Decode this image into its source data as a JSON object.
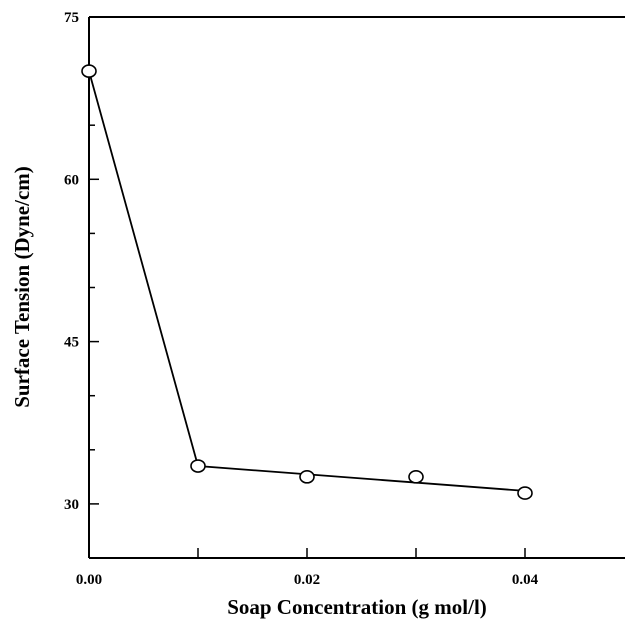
{
  "chart_data": {
    "type": "line",
    "xlabel": "Soap Concentration (g mol/l)",
    "ylabel": "Surface Tension (Dyne/cm)",
    "xlim": [
      0,
      0.05
    ],
    "ylim": [
      25,
      75
    ],
    "xticks": [
      0.0,
      0.01,
      0.02,
      0.03,
      0.04,
      0.05
    ],
    "xtick_labels": [
      "0.00",
      "",
      "0.02",
      "",
      "0.04",
      ""
    ],
    "yticks": [
      30,
      35,
      40,
      45,
      50,
      55,
      60,
      65,
      70,
      75
    ],
    "ytick_labels": [
      "30",
      "",
      "",
      "45",
      "",
      "",
      "60",
      "",
      "",
      "75"
    ],
    "grid": false,
    "series": [
      {
        "marker": "open-circle",
        "color": "#000000",
        "points": [
          {
            "x": 0.0,
            "y": 70.0
          },
          {
            "x": 0.01,
            "y": 33.5
          },
          {
            "x": 0.02,
            "y": 32.5
          },
          {
            "x": 0.03,
            "y": 32.5
          },
          {
            "x": 0.04,
            "y": 31.0
          }
        ]
      }
    ],
    "fit_line": [
      {
        "x": 0.0,
        "y": 70.0
      },
      {
        "x": 0.01,
        "y": 33.5
      },
      {
        "x": 0.04,
        "y": 31.2
      }
    ]
  }
}
